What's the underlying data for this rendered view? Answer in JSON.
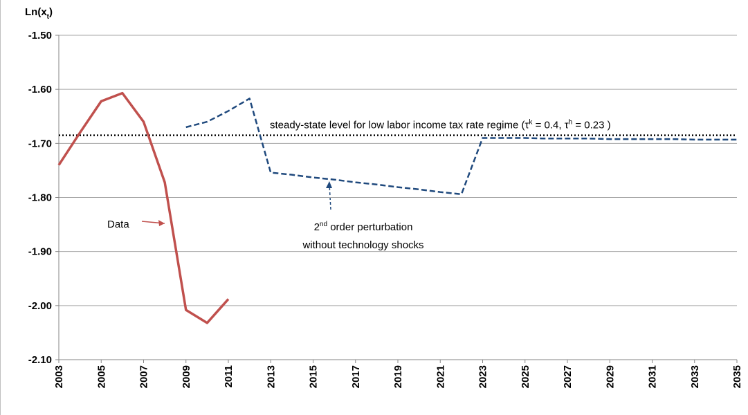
{
  "chart_data": {
    "type": "line",
    "y_label_parts": [
      "Ln(x",
      "t",
      ")"
    ],
    "xlim": [
      2003,
      2035
    ],
    "xticks": [
      2003,
      2005,
      2007,
      2009,
      2011,
      2013,
      2015,
      2017,
      2019,
      2021,
      2023,
      2025,
      2027,
      2029,
      2031,
      2033,
      2035
    ],
    "ylim": [
      -2.1,
      -1.5
    ],
    "yticks": [
      {
        "value": -1.5,
        "label": "-1.50"
      },
      {
        "value": -1.6,
        "label": "-1.60"
      },
      {
        "value": -1.7,
        "label": "-1.70"
      },
      {
        "value": -1.8,
        "label": "-1.80"
      },
      {
        "value": -1.9,
        "label": "-1.90"
      },
      {
        "value": -2.0,
        "label": "-2.00"
      },
      {
        "value": -2.1,
        "label": "-2.10"
      }
    ],
    "grid": true,
    "series": [
      {
        "name": "Data",
        "color": "#c0504d",
        "style": "solid",
        "x": [
          2003,
          2004,
          2005,
          2006,
          2007,
          2008,
          2009,
          2010,
          2011
        ],
        "values": [
          -1.74,
          -1.68,
          -1.622,
          -1.607,
          -1.66,
          -1.772,
          -2.008,
          -2.032,
          -1.988
        ]
      },
      {
        "name": "2nd order perturbation without technology shocks",
        "color": "#1f497d",
        "style": "dashed",
        "x": [
          2009,
          2010,
          2011,
          2012,
          2013,
          2014,
          2015,
          2016,
          2017,
          2018,
          2019,
          2020,
          2021,
          2022,
          2023,
          2024,
          2025,
          2026,
          2027,
          2028,
          2029,
          2030,
          2031,
          2032,
          2033,
          2034,
          2035
        ],
        "values": [
          -1.67,
          -1.66,
          -1.64,
          -1.617,
          -1.754,
          -1.758,
          -1.763,
          -1.767,
          -1.772,
          -1.776,
          -1.781,
          -1.785,
          -1.79,
          -1.794,
          -1.69,
          -1.69,
          -1.69,
          -1.691,
          -1.691,
          -1.691,
          -1.692,
          -1.692,
          -1.692,
          -1.692,
          -1.693,
          -1.693,
          -1.693
        ]
      }
    ],
    "reference_line": {
      "value": -1.685,
      "color": "#000000",
      "label_parts": [
        "steady-state level for low labor income tax rate regime (τ",
        "k",
        " = 0.4, τ",
        "h",
        " = 0.23 )"
      ]
    },
    "annotations": [
      {
        "parts": [
          "Data"
        ]
      },
      {
        "parts": [
          "2",
          "nd",
          " order perturbation"
        ]
      },
      {
        "parts": [
          "without  technology shocks"
        ]
      }
    ]
  }
}
